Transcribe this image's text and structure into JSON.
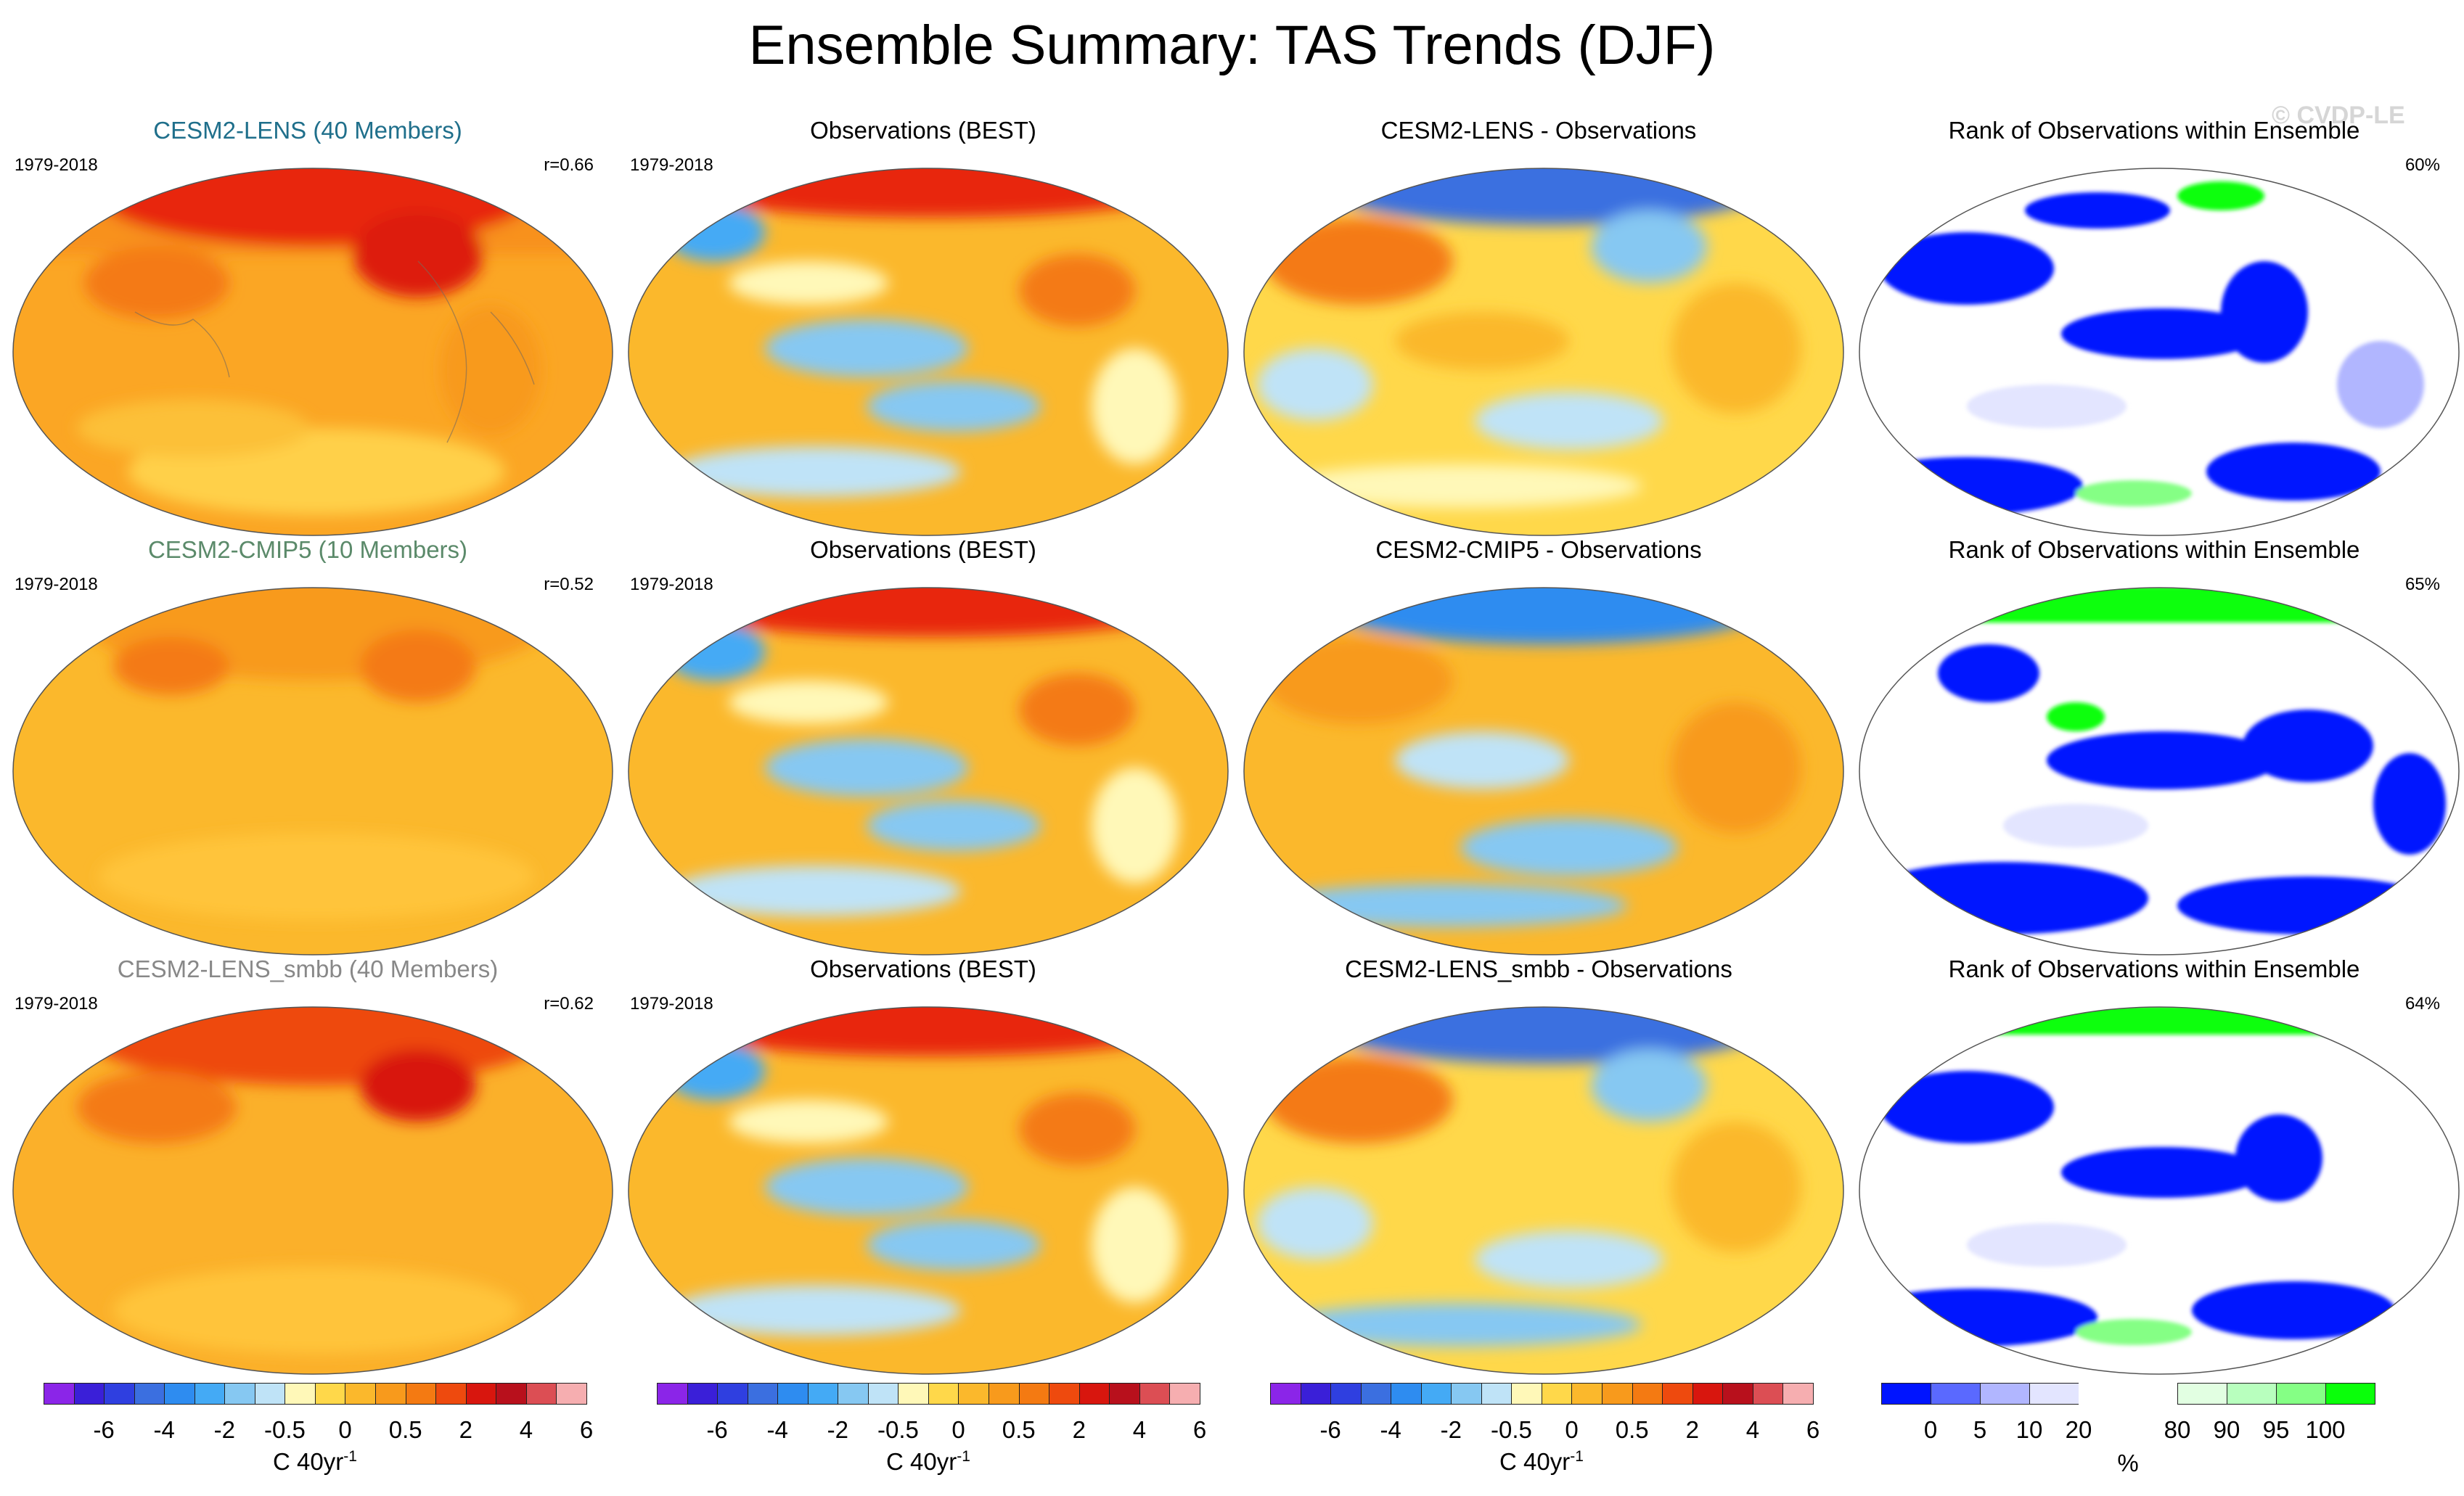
{
  "title": "Ensemble Summary: TAS Trends (DJF)",
  "watermark": "© CVDP-LE",
  "rows": [
    {
      "model": {
        "title": "CESM2-LENS (40 Members)",
        "title_color": "#1f6f8b",
        "period": "1979-2018",
        "corr": "r=0.66"
      },
      "obs": {
        "title": "Observations (BEST)",
        "period": "1979-2018"
      },
      "diff": {
        "title": "CESM2-LENS - Observations"
      },
      "rank": {
        "title": "Rank of Observations within Ensemble",
        "pct": "60%"
      }
    },
    {
      "model": {
        "title": "CESM2-CMIP5 (10 Members)",
        "title_color": "#5b8a6a",
        "period": "1979-2018",
        "corr": "r=0.52"
      },
      "obs": {
        "title": "Observations (BEST)",
        "period": "1979-2018"
      },
      "diff": {
        "title": "CESM2-CMIP5 - Observations"
      },
      "rank": {
        "title": "Rank of Observations within Ensemble",
        "pct": "65%"
      }
    },
    {
      "model": {
        "title": "CESM2-LENS_smbb (40 Members)",
        "title_color": "#888888",
        "period": "1979-2018",
        "corr": "r=0.62"
      },
      "obs": {
        "title": "Observations (BEST)",
        "period": "1979-2018"
      },
      "diff": {
        "title": "CESM2-LENS_smbb - Observations"
      },
      "rank": {
        "title": "Rank of Observations within Ensemble",
        "pct": "64%"
      }
    }
  ],
  "trend_colorbar": {
    "colors": [
      "#8b25e8",
      "#3a1fd8",
      "#2f3fe0",
      "#3b6fe0",
      "#2e8cf0",
      "#44aaf5",
      "#86c8f2",
      "#bfe3f7",
      "#fff8b8",
      "#ffd84a",
      "#fbb82c",
      "#f89a1c",
      "#f47a12",
      "#ee4a0e",
      "#d8160e",
      "#b8101c",
      "#dc4e54",
      "#f6aeb0"
    ],
    "ticks": [
      "-6",
      "-4",
      "-2",
      "-0.5",
      "0",
      "0.5",
      "2",
      "4",
      "6"
    ],
    "unit_text": "C 40yr",
    "unit_exp": "-1"
  },
  "rank_colorbar": {
    "colors": [
      "#0014ff",
      "#5a69ff",
      "#b1b6ff",
      "#e3e5ff",
      "#ffffff",
      "#ffffff",
      "#e2ffe2",
      "#b8ffbe",
      "#85ff85",
      "#0aff0a"
    ],
    "ticks": [
      "0",
      "5",
      "10",
      "20",
      "80",
      "90",
      "95",
      "100"
    ],
    "unit_text": "%"
  }
}
